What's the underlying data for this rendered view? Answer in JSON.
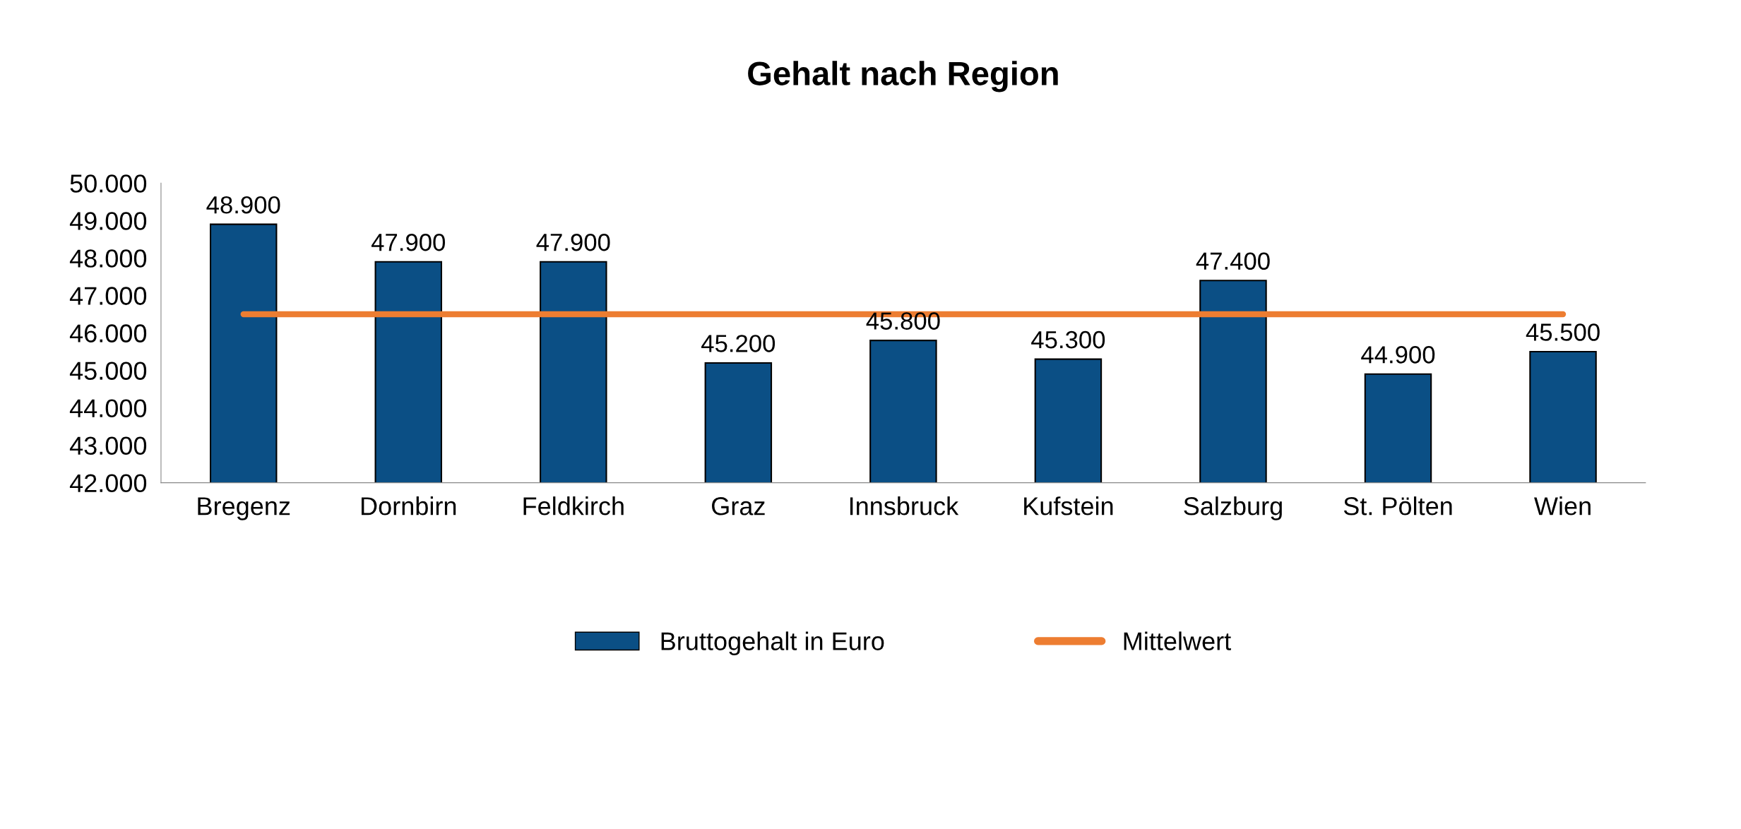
{
  "chart_data": {
    "type": "bar",
    "title": "Gehalt nach Region",
    "categories": [
      "Bregenz",
      "Dornbirn",
      "Feldkirch",
      "Graz",
      "Innsbruck",
      "Kufstein",
      "Salzburg",
      "St. Pölten",
      "Wien"
    ],
    "series": [
      {
        "name": "Bruttogehalt in Euro",
        "color": "#0b4f85",
        "values": [
          48900,
          47900,
          47900,
          45200,
          45800,
          45300,
          47400,
          44900,
          45500
        ],
        "value_labels": [
          "48.900",
          "47.900",
          "47.900",
          "45.200",
          "45.800",
          "45.300",
          "47.400",
          "44.900",
          "45.500"
        ]
      },
      {
        "name": "Mittelwert",
        "type": "line",
        "color": "#ed7d31",
        "values": [
          46500,
          46500,
          46500,
          46500,
          46500,
          46500,
          46500,
          46500,
          46500
        ]
      }
    ],
    "ylim": [
      42000,
      50000
    ],
    "yticks": [
      {
        "value": 42000,
        "label": "42.000"
      },
      {
        "value": 43000,
        "label": "43.000"
      },
      {
        "value": 44000,
        "label": "44.000"
      },
      {
        "value": 45000,
        "label": "45.000"
      },
      {
        "value": 46000,
        "label": "46.000"
      },
      {
        "value": 47000,
        "label": "47.000"
      },
      {
        "value": 48000,
        "label": "48.000"
      },
      {
        "value": 49000,
        "label": "49.000"
      },
      {
        "value": 50000,
        "label": "50.000"
      }
    ],
    "grid": false,
    "legend": "bottom"
  }
}
